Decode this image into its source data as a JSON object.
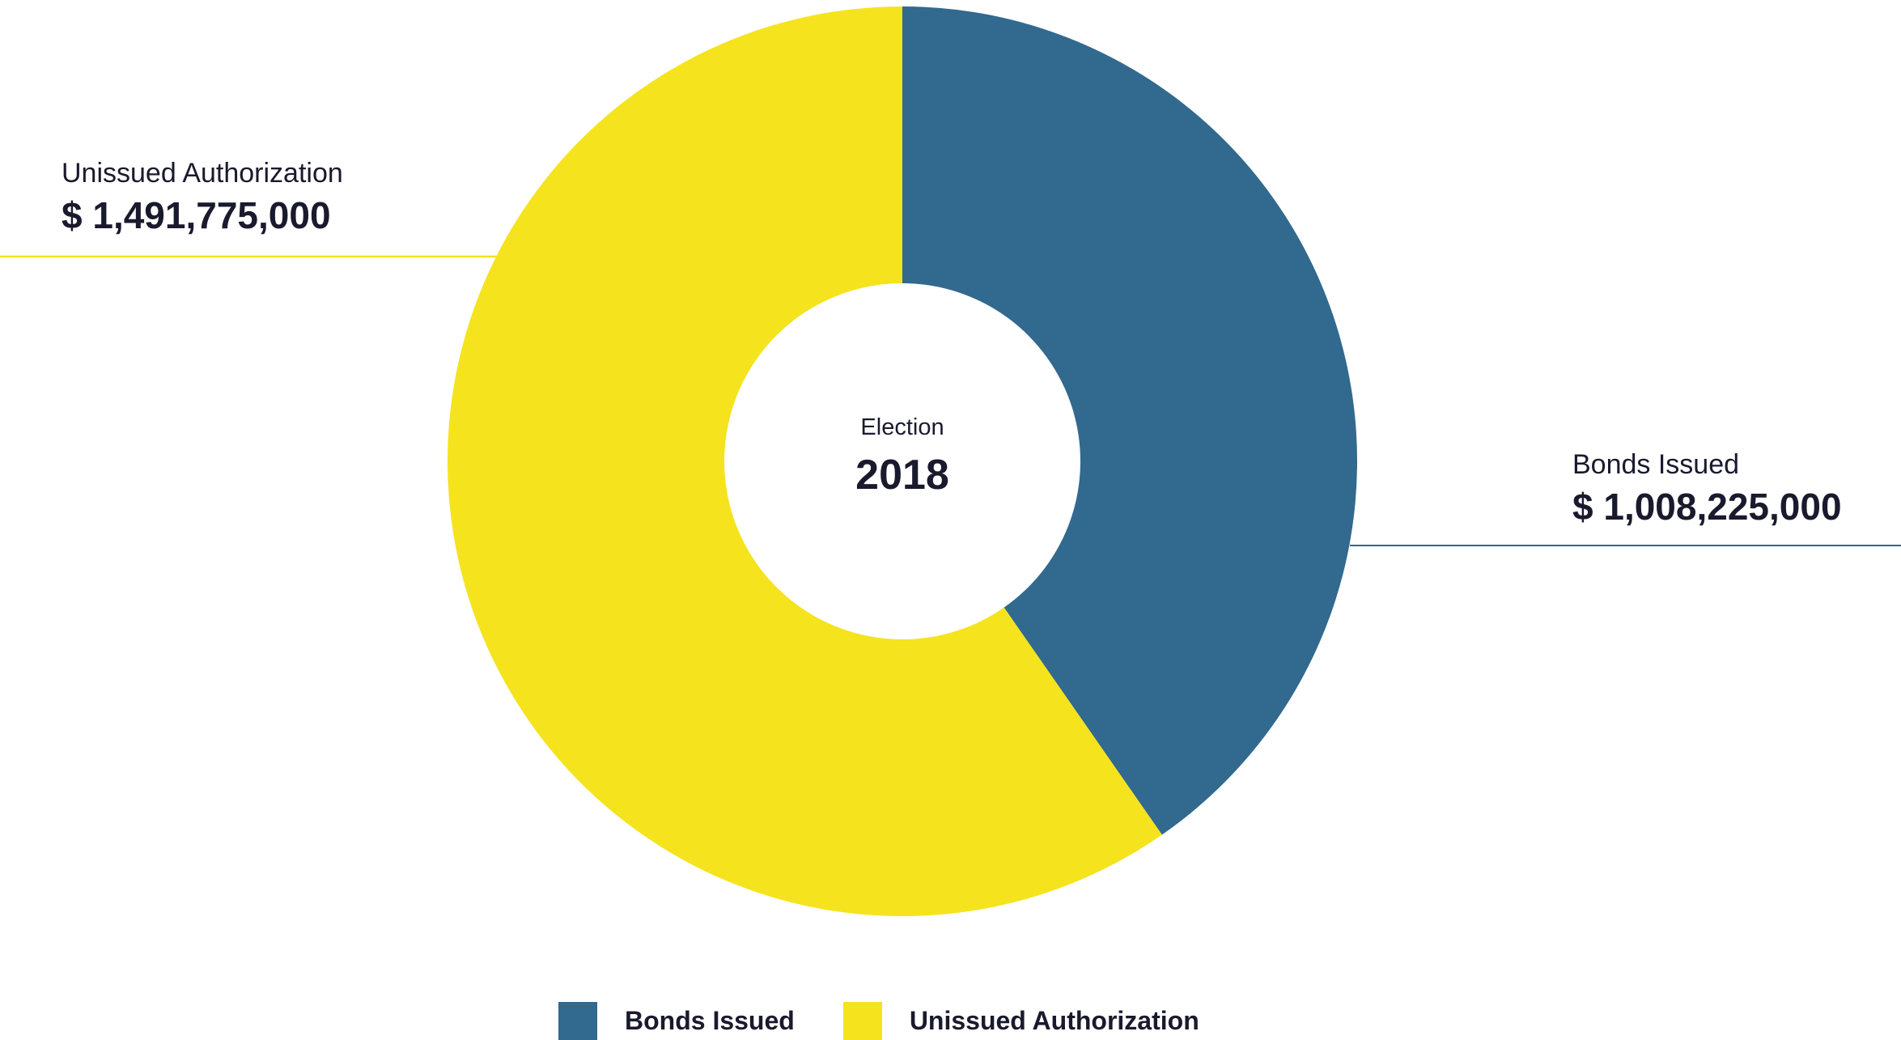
{
  "chart_data": {
    "type": "pie",
    "donut": true,
    "center": {
      "label": "Election",
      "value": "2018"
    },
    "slices": [
      {
        "name": "Bonds Issued",
        "value": 1008225000,
        "display": "$ 1,008,225,000",
        "color": "#32698e"
      },
      {
        "name": "Unissued Authorization",
        "value": 1491775000,
        "display": "$ 1,491,775,000",
        "color": "#f5e31e"
      }
    ],
    "legend": {
      "placement": "bottom",
      "entries": [
        "Bonds Issued",
        "Unissued Authorization"
      ]
    }
  }
}
